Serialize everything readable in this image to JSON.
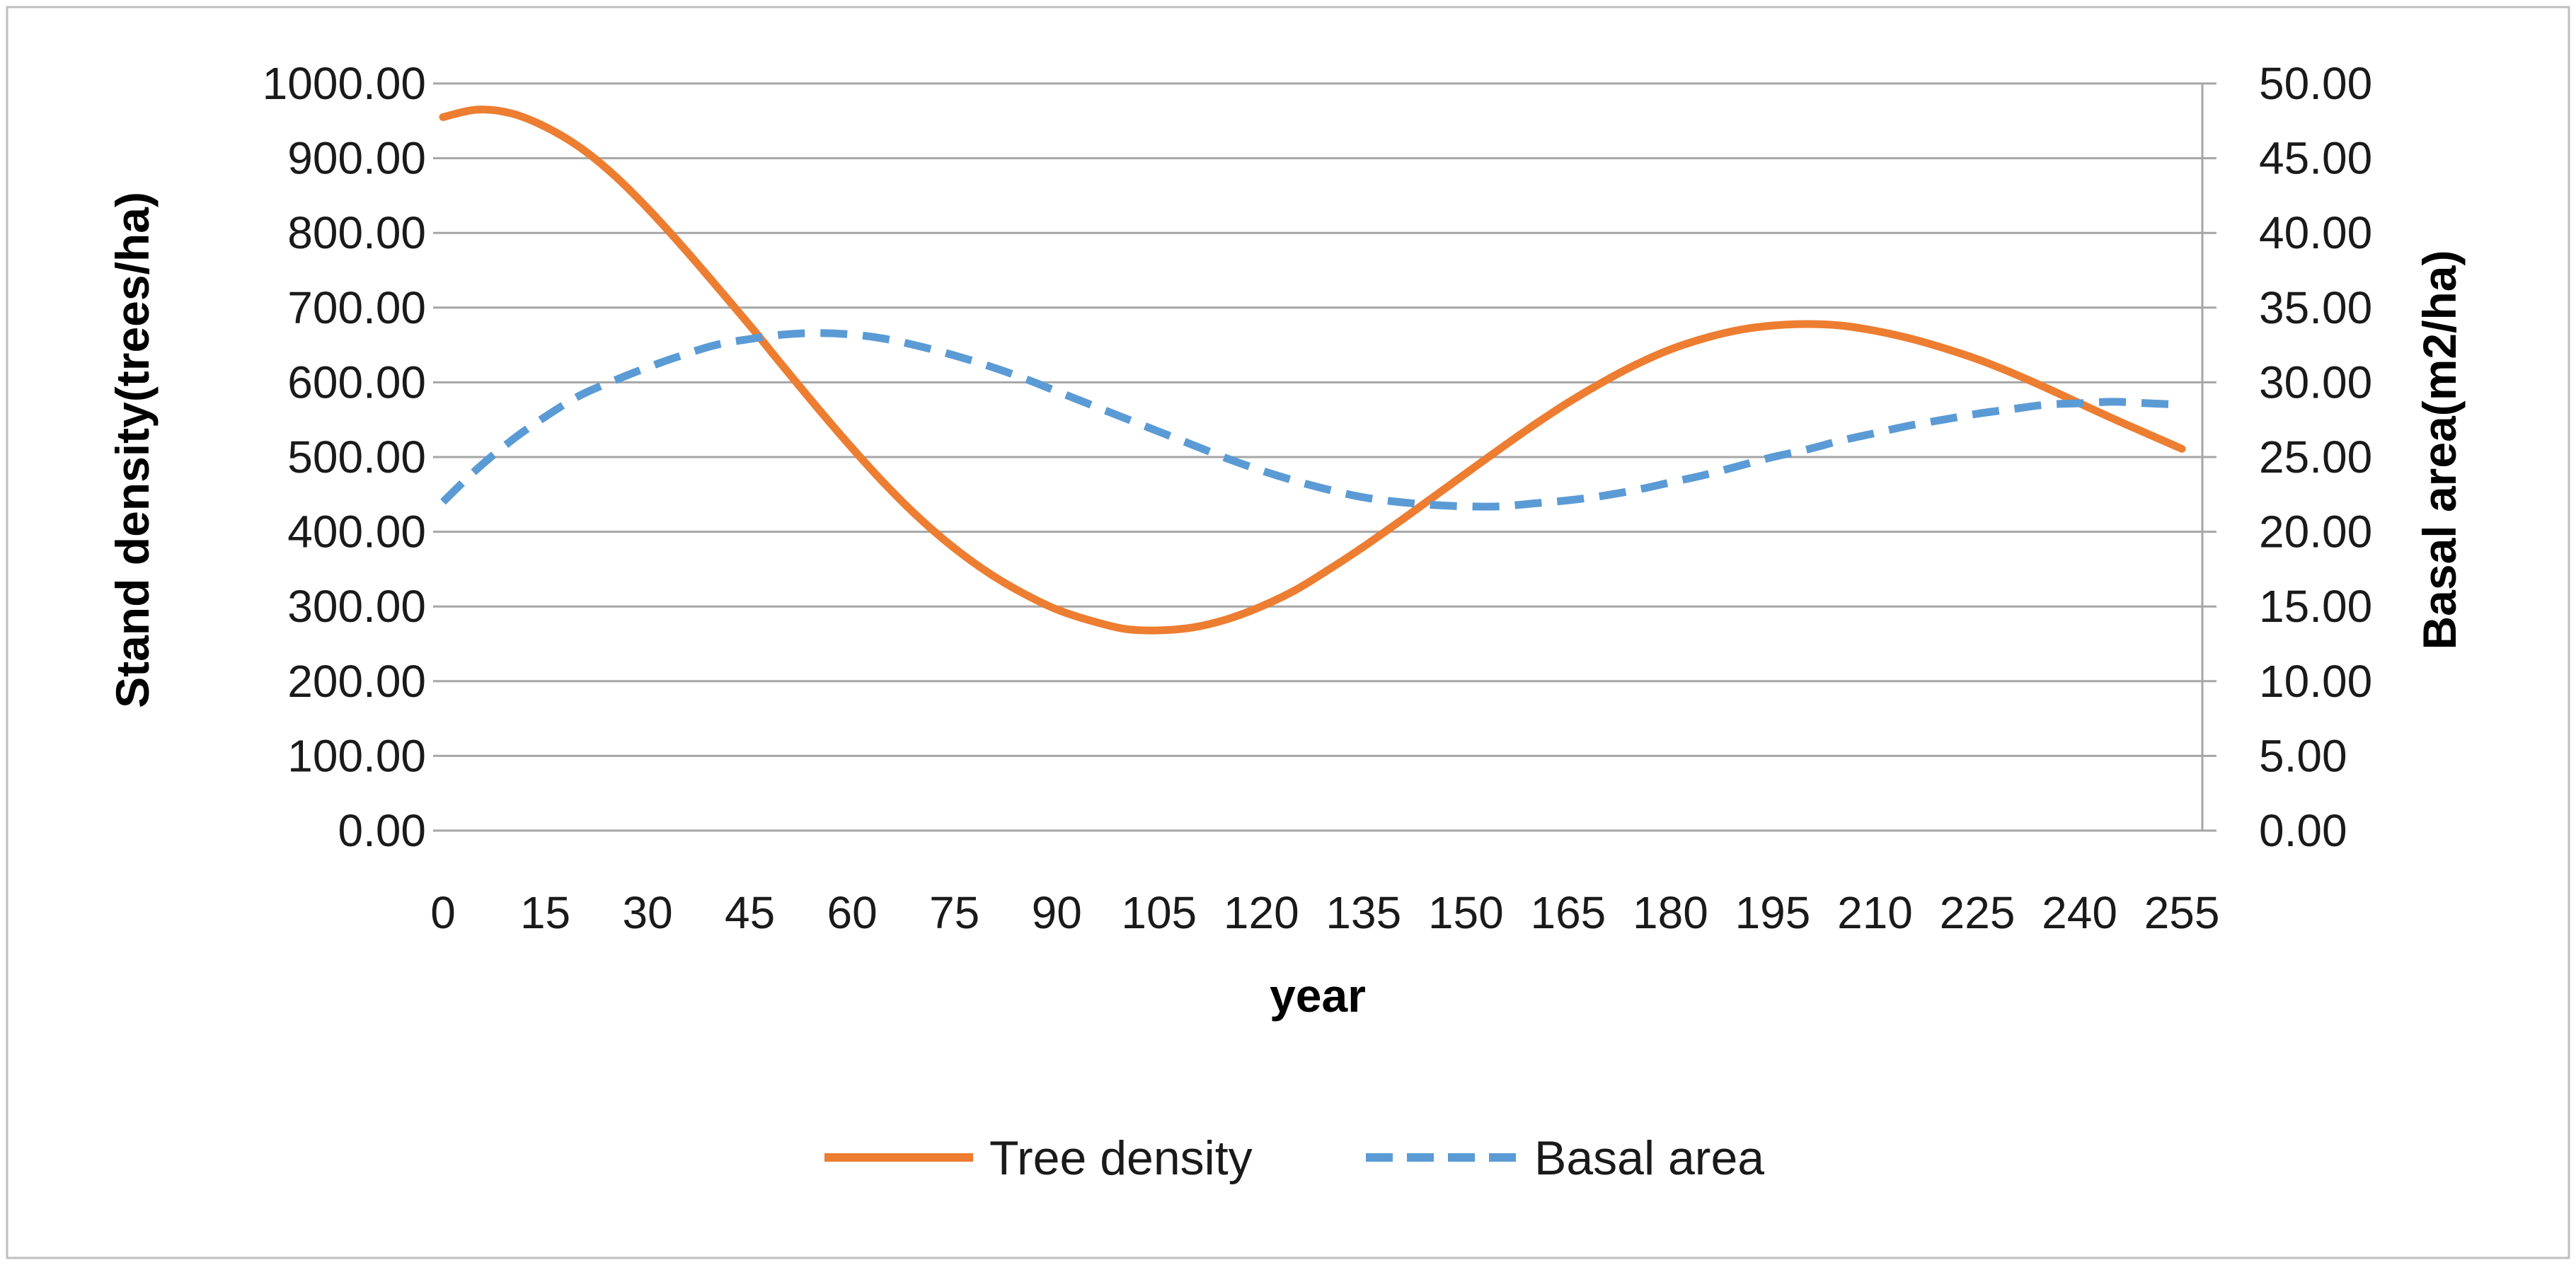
{
  "chart_data": {
    "type": "line",
    "title": "",
    "xlabel": "year",
    "ylabel_left": "Stand density(trees/ha)",
    "ylabel_right": "Basal area(m2/ha)",
    "x_ticks": [
      "0",
      "15",
      "30",
      "45",
      "60",
      "75",
      "90",
      "105",
      "120",
      "135",
      "150",
      "165",
      "180",
      "195",
      "210",
      "225",
      "240",
      "255"
    ],
    "xlim": [
      0,
      258
    ],
    "y_left_ticks": [
      "0.00",
      "100.00",
      "200.00",
      "300.00",
      "400.00",
      "500.00",
      "600.00",
      "700.00",
      "800.00",
      "900.00",
      "1000.00"
    ],
    "ylim_left": [
      0,
      1000
    ],
    "y_right_ticks": [
      "0.00",
      "5.00",
      "10.00",
      "15.00",
      "20.00",
      "25.00",
      "30.00",
      "35.00",
      "40.00",
      "45.00",
      "50.00"
    ],
    "ylim_right": [
      0,
      50
    ],
    "grid": "horizontal",
    "legend_position": "bottom",
    "series": [
      {
        "name": "Tree density",
        "axis": "left",
        "color": "#ED7D31",
        "dash": "solid",
        "x": [
          0,
          5,
          10,
          15,
          20,
          25,
          30,
          35,
          40,
          45,
          50,
          55,
          60,
          65,
          70,
          75,
          80,
          85,
          90,
          95,
          100,
          105,
          110,
          115,
          120,
          125,
          130,
          135,
          140,
          145,
          150,
          155,
          160,
          165,
          170,
          175,
          180,
          185,
          190,
          195,
          200,
          205,
          210,
          215,
          220,
          225,
          230,
          235,
          240,
          245,
          250,
          255
        ],
        "values": [
          955,
          965,
          960,
          942,
          915,
          878,
          833,
          783,
          730,
          676,
          620,
          565,
          512,
          462,
          417,
          378,
          345,
          318,
          296,
          281,
          270,
          268,
          272,
          283,
          300,
          322,
          350,
          380,
          412,
          445,
          478,
          511,
          543,
          573,
          600,
          624,
          644,
          659,
          670,
          676,
          678,
          676,
          669,
          659,
          646,
          631,
          613,
          593,
          572,
          551,
          531,
          511
        ]
      },
      {
        "name": "Basal area",
        "axis": "right",
        "color": "#5B9BD5",
        "dash": "dashed",
        "x": [
          0,
          5,
          10,
          15,
          20,
          25,
          30,
          35,
          40,
          45,
          50,
          55,
          60,
          65,
          70,
          75,
          80,
          85,
          90,
          95,
          100,
          105,
          110,
          115,
          120,
          125,
          130,
          135,
          140,
          145,
          150,
          155,
          160,
          165,
          170,
          175,
          180,
          185,
          190,
          195,
          200,
          205,
          210,
          215,
          220,
          225,
          230,
          235,
          240,
          245,
          250,
          255
        ],
        "values": [
          22.0,
          24.2,
          26.1,
          27.7,
          29.1,
          30.1,
          31.0,
          31.8,
          32.5,
          32.9,
          33.2,
          33.3,
          33.2,
          32.9,
          32.4,
          31.8,
          31.1,
          30.3,
          29.4,
          28.5,
          27.6,
          26.7,
          25.8,
          24.9,
          24.1,
          23.4,
          22.8,
          22.3,
          22.0,
          21.8,
          21.7,
          21.7,
          21.9,
          22.1,
          22.4,
          22.8,
          23.3,
          23.8,
          24.4,
          25.0,
          25.5,
          26.1,
          26.6,
          27.1,
          27.5,
          27.9,
          28.2,
          28.5,
          28.6,
          28.7,
          28.6,
          28.5
        ]
      }
    ]
  }
}
